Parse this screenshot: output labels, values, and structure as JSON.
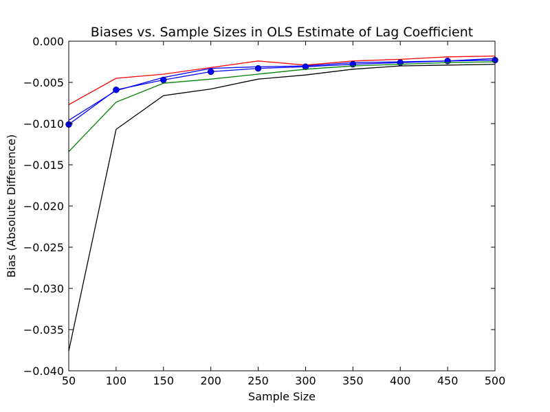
{
  "chart_data": {
    "type": "line",
    "title": "Biases vs. Sample Sizes in OLS Estimate of Lag Coefficient",
    "xlabel": "Sample Size",
    "ylabel": "Bias (Absolute Difference)",
    "xlim": [
      50,
      500
    ],
    "ylim": [
      -0.04,
      0.0
    ],
    "xticks": [
      "50",
      "100",
      "150",
      "200",
      "250",
      "300",
      "350",
      "400",
      "450",
      "500"
    ],
    "yticks": [
      "0.000",
      "−0.005",
      "−0.010",
      "−0.015",
      "−0.020",
      "−0.025",
      "−0.030",
      "−0.035",
      "−0.040"
    ],
    "x": [
      50,
      100,
      150,
      200,
      250,
      300,
      350,
      400,
      450,
      500
    ],
    "grid": false,
    "legend": "none",
    "series": [
      {
        "color": "#ff0000",
        "marker": "none",
        "values": [
          -0.0077,
          -0.0045,
          -0.004,
          -0.0032,
          -0.0024,
          -0.0029,
          -0.0024,
          -0.0022,
          -0.0019,
          -0.0018
        ]
      },
      {
        "color": "#0000ff",
        "marker": "none",
        "values": [
          -0.0096,
          -0.006,
          -0.0044,
          -0.0033,
          -0.0031,
          -0.003,
          -0.0026,
          -0.0025,
          -0.0024,
          -0.0021
        ]
      },
      {
        "color": "#0000ff",
        "marker": "circle",
        "values": [
          -0.0101,
          -0.0059,
          -0.0047,
          -0.0037,
          -0.0033,
          -0.0031,
          -0.0028,
          -0.0026,
          -0.0024,
          -0.0023
        ]
      },
      {
        "color": "#008000",
        "marker": "none",
        "values": [
          -0.0134,
          -0.0074,
          -0.0051,
          -0.0046,
          -0.004,
          -0.0034,
          -0.003,
          -0.0028,
          -0.0026,
          -0.0025
        ]
      },
      {
        "color": "#000000",
        "marker": "none",
        "values": [
          -0.0376,
          -0.0107,
          -0.0066,
          -0.0058,
          -0.0046,
          -0.0041,
          -0.0034,
          -0.003,
          -0.0029,
          -0.0028
        ]
      }
    ]
  }
}
